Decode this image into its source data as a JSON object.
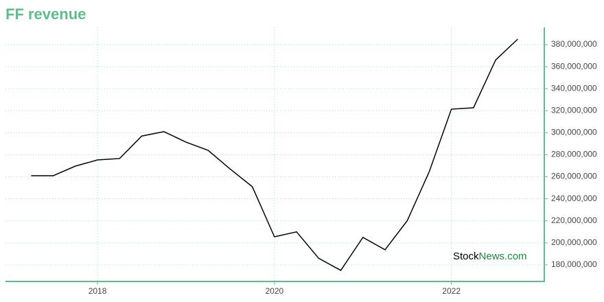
{
  "chart_data": {
    "type": "line",
    "title": "FF revenue",
    "x": [
      2017.25,
      2017.5,
      2017.75,
      2018.0,
      2018.25,
      2018.5,
      2018.75,
      2019.0,
      2019.25,
      2019.5,
      2019.75,
      2020.0,
      2020.25,
      2020.5,
      2020.75,
      2021.0,
      2021.25,
      2021.5,
      2021.75,
      2022.0,
      2022.25,
      2022.5,
      2022.75
    ],
    "series": [
      {
        "name": "FF revenue",
        "color": "#000000",
        "values": [
          261000000,
          261000000,
          269700000,
          275300000,
          276600000,
          297000000,
          301000000,
          291500000,
          284000000,
          267000000,
          251000000,
          205500000,
          210000000,
          186000000,
          175000000,
          205000000,
          193700000,
          220000000,
          264700000,
          321400000,
          322700000,
          366000000,
          385000000
        ]
      }
    ],
    "xlim": [
      2016.96,
      2023.05
    ],
    "xticks": [
      2018,
      2020,
      2022
    ],
    "ylim": [
      165000000,
      395600000
    ],
    "yticks": [
      {
        "value": 180000000,
        "label": "180,000,000"
      },
      {
        "value": 200000000,
        "label": "200,000,000"
      },
      {
        "value": 220000000,
        "label": "220,000,000"
      },
      {
        "value": 240000000,
        "label": "240,000,000"
      },
      {
        "value": 260000000,
        "label": "260,000,000"
      },
      {
        "value": 280000000,
        "label": "280,000,000"
      },
      {
        "value": 300000000,
        "label": "300,000,000"
      },
      {
        "value": 320000000,
        "label": "320,000,000"
      },
      {
        "value": 340000000,
        "label": "340,000,000"
      },
      {
        "value": 360000000,
        "label": "360,000,000"
      },
      {
        "value": 380000000,
        "label": "380,000,000"
      }
    ],
    "grid": true,
    "axis_color": "#5cbf8a",
    "watermark": [
      "Stock",
      "News.com"
    ]
  }
}
